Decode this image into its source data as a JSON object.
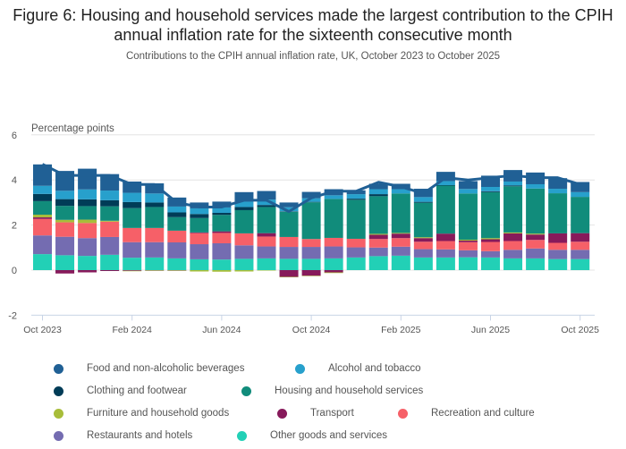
{
  "chart_data": {
    "type": "bar",
    "stacked": true,
    "title": "Figure 6: Housing and household services made the largest contribution to the CPIH annual inflation rate for the sixteenth consecutive month",
    "subtitle": "Contributions to the CPIH annual inflation rate, UK, October 2023 to October 2025",
    "ylabel": "Percentage points",
    "xlabel": "",
    "ylim": [
      -2,
      6
    ],
    "yticks": [
      6,
      4,
      2,
      0,
      -2
    ],
    "grid": true,
    "legend_position": "bottom",
    "categories": [
      "Oct 2023",
      "Nov 2023",
      "Dec 2023",
      "Jan 2024",
      "Feb 2024",
      "Mar 2024",
      "Apr 2024",
      "May 2024",
      "Jun 2024",
      "Jul 2024",
      "Aug 2024",
      "Sep 2024",
      "Oct 2024",
      "Nov 2024",
      "Dec 2024",
      "Jan 2025",
      "Feb 2025",
      "Mar 2025",
      "Apr 2025",
      "May 2025",
      "Jun 2025",
      "Jul 2025",
      "Aug 2025",
      "Sep 2025",
      "Oct 2025"
    ],
    "xtick_labels": [
      "Oct 2023",
      "Feb 2024",
      "Jun 2024",
      "Oct 2024",
      "Feb 2025",
      "Jun 2025",
      "Oct 2025"
    ],
    "xtick_indices": [
      0,
      4,
      8,
      12,
      16,
      20,
      24
    ],
    "series": [
      {
        "name": "Other goods and services",
        "color": "#22d0b6",
        "values": [
          0.71,
          0.66,
          0.63,
          0.68,
          0.55,
          0.56,
          0.52,
          0.48,
          0.47,
          0.5,
          0.52,
          0.5,
          0.5,
          0.52,
          0.56,
          0.62,
          0.64,
          0.56,
          0.56,
          0.57,
          0.56,
          0.52,
          0.52,
          0.49,
          0.49
        ]
      },
      {
        "name": "Restaurants and hotels",
        "color": "#746cb1",
        "values": [
          0.83,
          0.82,
          0.79,
          0.79,
          0.69,
          0.68,
          0.71,
          0.67,
          0.72,
          0.6,
          0.53,
          0.53,
          0.53,
          0.53,
          0.45,
          0.38,
          0.4,
          0.37,
          0.36,
          0.31,
          0.28,
          0.38,
          0.44,
          0.41,
          0.41
        ]
      },
      {
        "name": "Recreation and culture",
        "color": "#f66068",
        "values": [
          0.73,
          0.64,
          0.67,
          0.68,
          0.63,
          0.63,
          0.52,
          0.49,
          0.46,
          0.53,
          0.44,
          0.44,
          0.35,
          0.38,
          0.38,
          0.38,
          0.38,
          0.33,
          0.37,
          0.36,
          0.41,
          0.39,
          0.38,
          0.31,
          0.36
        ]
      },
      {
        "name": "Transport",
        "color": "#871a5b",
        "values": [
          0.07,
          -0.15,
          -0.1,
          -0.04,
          -0.03,
          -0.01,
          -0.01,
          0.03,
          0.07,
          0.0,
          0.15,
          -0.3,
          -0.25,
          -0.1,
          0.0,
          0.19,
          0.2,
          0.16,
          0.33,
          0.07,
          0.12,
          0.34,
          0.24,
          0.42,
          0.38
        ]
      },
      {
        "name": "Furniture and household goods",
        "color": "#a8bd3a",
        "values": [
          0.12,
          0.11,
          0.15,
          0.04,
          -0.01,
          -0.02,
          -0.02,
          -0.06,
          -0.07,
          -0.06,
          -0.02,
          -0.02,
          -0.02,
          -0.03,
          0.0,
          0.04,
          0.03,
          0.04,
          0.0,
          0.04,
          0.05,
          0.04,
          0.04,
          0.0,
          0.0
        ]
      },
      {
        "name": "Housing and household services",
        "color": "#118c7b",
        "values": [
          0.6,
          0.62,
          0.6,
          0.64,
          0.88,
          0.93,
          0.6,
          0.64,
          0.73,
          1.03,
          1.16,
          1.12,
          1.63,
          1.73,
          1.73,
          1.67,
          1.75,
          1.53,
          2.14,
          2.05,
          2.04,
          2.05,
          2.0,
          1.78,
          1.61
        ]
      },
      {
        "name": "Clothing and footwear",
        "color": "#003c57",
        "values": [
          0.32,
          0.3,
          0.3,
          0.27,
          0.27,
          0.2,
          0.21,
          0.18,
          0.09,
          0.14,
          0.09,
          0.02,
          0.02,
          0.0,
          0.05,
          0.09,
          0.0,
          0.04,
          0.01,
          0.0,
          0.04,
          0.04,
          0.0,
          0.0,
          0.0
        ]
      },
      {
        "name": "Alcohol and tobacco",
        "color": "#27a0cc",
        "values": [
          0.36,
          0.37,
          0.44,
          0.43,
          0.41,
          0.4,
          0.26,
          0.25,
          0.24,
          0.24,
          0.24,
          0.18,
          0.16,
          0.16,
          0.2,
          0.22,
          0.19,
          0.21,
          0.18,
          0.2,
          0.19,
          0.17,
          0.19,
          0.2,
          0.21
        ]
      },
      {
        "name": "Food and non-alcoholic beverages",
        "color": "#206095",
        "values": [
          0.95,
          0.88,
          0.92,
          0.73,
          0.5,
          0.45,
          0.4,
          0.26,
          0.26,
          0.42,
          0.38,
          0.21,
          0.28,
          0.27,
          0.17,
          0.24,
          0.24,
          0.37,
          0.41,
          0.35,
          0.5,
          0.51,
          0.52,
          0.47,
          0.45
        ]
      }
    ],
    "line": {
      "name": "CPIH",
      "color": "#206095",
      "values": [
        4.7,
        4.2,
        4.2,
        4.2,
        3.8,
        3.8,
        3.0,
        2.8,
        2.8,
        3.1,
        3.1,
        2.6,
        3.2,
        3.5,
        3.5,
        3.9,
        3.7,
        3.4,
        4.1,
        4.0,
        4.1,
        4.2,
        4.1,
        4.1,
        3.8
      ]
    }
  },
  "legend": [
    {
      "label": "Food and non-alcoholic beverages",
      "color": "#206095"
    },
    {
      "label": "Alcohol and tobacco",
      "color": "#27a0cc"
    },
    {
      "label": "Clothing and footwear",
      "color": "#003c57"
    },
    {
      "label": "Housing and household services",
      "color": "#118c7b"
    },
    {
      "label": "Furniture and household goods",
      "color": "#a8bd3a"
    },
    {
      "label": "Transport",
      "color": "#871a5b"
    },
    {
      "label": "Recreation and culture",
      "color": "#f66068"
    },
    {
      "label": "Restaurants and hotels",
      "color": "#746cb1"
    },
    {
      "label": "Other goods and services",
      "color": "#22d0b6"
    }
  ]
}
